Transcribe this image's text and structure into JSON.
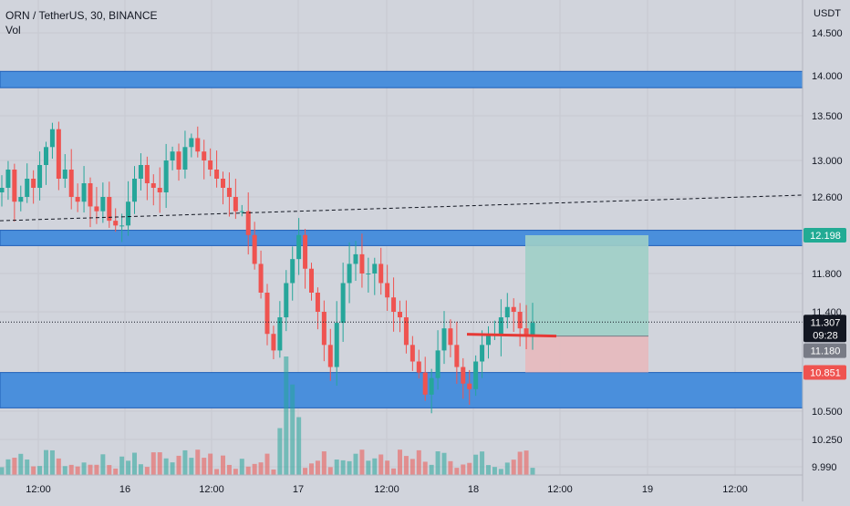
{
  "legend": {
    "symbol": "ORN / TetherUS, 30, BINANCE",
    "indicator": "Vol"
  },
  "price_axis": {
    "unit": "USDT",
    "ticks": [
      "14.500",
      "14.000",
      "13.500",
      "13.000",
      "12.600",
      "11.800",
      "11.400",
      "10.500",
      "10.250",
      "9.990"
    ]
  },
  "time_axis": {
    "ticks": [
      "12:00",
      "16",
      "12:00",
      "17",
      "12:00",
      "18",
      "12:00",
      "19",
      "12:00"
    ]
  },
  "price_labels": {
    "zone_level": "12.198",
    "last_price": "11.307",
    "countdown": "09:28",
    "entry_level": "11.180",
    "stop_level": "10.851"
  },
  "colors": {
    "background": "#d1d4dc",
    "zone": "#4a8fdc",
    "zone_border": "#1f5fb8",
    "up": "#26a69a",
    "down": "#ef5350",
    "target_box": "#9fcfc6",
    "stop_box": "#e7b9bd",
    "entry_line": "#e53935",
    "last_price_label": "#131722",
    "entry_label": "#787b86",
    "stop_label": "#ef5350",
    "zone_label": "#22ab94"
  },
  "chart_data": {
    "type": "candlestick",
    "symbol": "ORN / TetherUS",
    "timeframe": "30",
    "exchange": "BINANCE",
    "ylim": [
      9.99,
      14.6
    ],
    "support_resistance_zones": [
      [
        13.85,
        14.05
      ],
      [
        12.09,
        12.25
      ],
      [
        10.53,
        10.85
      ]
    ],
    "trendline": {
      "start": 12.35,
      "end": 12.62
    },
    "position": {
      "entry": 11.18,
      "target": 12.198,
      "stop": 10.851
    },
    "close_segments": [
      [
        12.7,
        12.9,
        12.55,
        12.6,
        12.8,
        12.7,
        12.95,
        13.15,
        13.35,
        12.8,
        12.9,
        12.6,
        12.55,
        12.75,
        12.5,
        12.45,
        12.6,
        12.35,
        12.3
      ],
      [
        12.3,
        12.55,
        12.8,
        12.95,
        12.75,
        12.7,
        12.65,
        13.0,
        13.1,
        12.9,
        13.15,
        13.25,
        13.1,
        13.0,
        12.9,
        12.8,
        12.7,
        12.6,
        12.45
      ],
      [
        12.45,
        12.2,
        11.9,
        11.6,
        11.2,
        11.05,
        11.35,
        11.7,
        11.95,
        12.2,
        11.85,
        11.6,
        11.4,
        11.1,
        10.9,
        11.3,
        11.7,
        11.9,
        12.0,
        11.8
      ],
      [
        11.8,
        11.9,
        11.7,
        11.55,
        11.4,
        11.35,
        11.1,
        10.95,
        10.85,
        10.65,
        10.8,
        11.05,
        11.25,
        11.1,
        10.9,
        10.75,
        10.7,
        10.95,
        11.1,
        11.2
      ],
      [
        11.2,
        11.35,
        11.45,
        11.4,
        11.25,
        11.18,
        11.3
      ]
    ],
    "volume_note": "relative volume bars, spike near the 17 session open"
  }
}
